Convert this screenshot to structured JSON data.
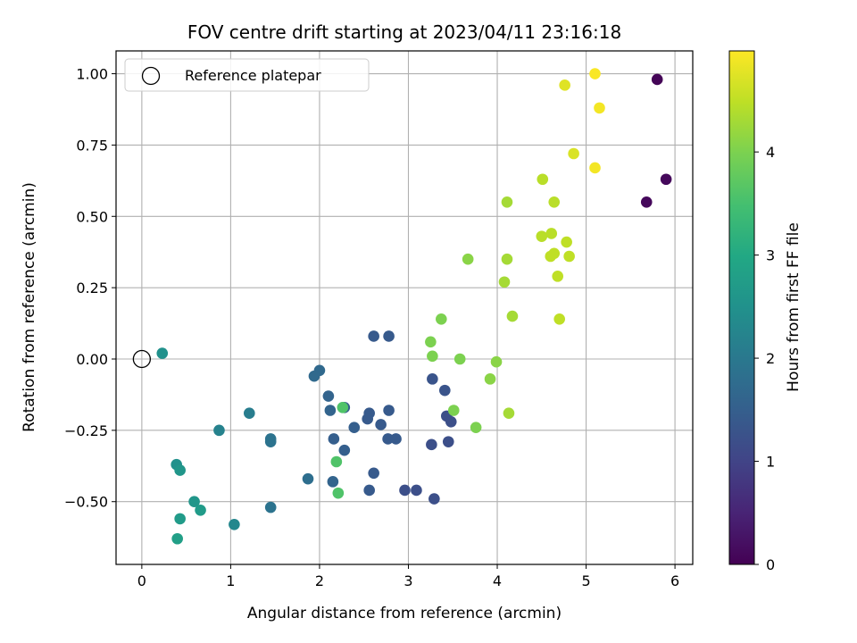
{
  "chart_data": {
    "type": "scatter",
    "title": "FOV centre drift starting at 2023/04/11 23:16:18",
    "xlabel": "Angular distance from reference (arcmin)",
    "ylabel": "Rotation from reference (arcmin)",
    "xlim": [
      -0.29,
      6.2
    ],
    "ylim": [
      -0.72,
      1.08
    ],
    "xticks": [
      0,
      1,
      2,
      3,
      4,
      5,
      6
    ],
    "xtick_labels": [
      "0",
      "1",
      "2",
      "3",
      "4",
      "5",
      "6"
    ],
    "yticks": [
      -0.5,
      -0.25,
      0.0,
      0.25,
      0.5,
      0.75,
      1.0
    ],
    "ytick_labels": [
      "−0.50",
      "−0.25",
      "0.00",
      "0.25",
      "0.50",
      "0.75",
      "1.00"
    ],
    "grid": true,
    "legend": {
      "placement": "top-left",
      "entries": [
        {
          "label": "Reference platepar",
          "marker": "open-circle"
        }
      ]
    },
    "reference_point": {
      "x": 0.0,
      "y": 0.0
    },
    "colorbar": {
      "label": "Hours from first FF file",
      "colormap": "viridis",
      "range": [
        0,
        4.98
      ],
      "ticks": [
        0,
        1,
        2,
        3,
        4
      ],
      "tick_labels": [
        "0",
        "1",
        "2",
        "3",
        "4"
      ]
    },
    "points": [
      {
        "x": 5.8,
        "y": 0.98,
        "c": 0.05
      },
      {
        "x": 5.9,
        "y": 0.63,
        "c": 0.1
      },
      {
        "x": 5.68,
        "y": 0.55,
        "c": 0.1
      },
      {
        "x": 2.61,
        "y": 0.08,
        "c": 1.4
      },
      {
        "x": 2.78,
        "y": 0.08,
        "c": 1.4
      },
      {
        "x": 3.27,
        "y": -0.07,
        "c": 1.3
      },
      {
        "x": 3.41,
        "y": -0.11,
        "c": 1.3
      },
      {
        "x": 3.43,
        "y": -0.2,
        "c": 1.2
      },
      {
        "x": 3.48,
        "y": -0.22,
        "c": 1.2
      },
      {
        "x": 3.45,
        "y": -0.29,
        "c": 1.2
      },
      {
        "x": 3.26,
        "y": -0.3,
        "c": 1.2
      },
      {
        "x": 3.29,
        "y": -0.49,
        "c": 1.2
      },
      {
        "x": 3.09,
        "y": -0.46,
        "c": 1.2
      },
      {
        "x": 2.96,
        "y": -0.46,
        "c": 1.2
      },
      {
        "x": 2.78,
        "y": -0.18,
        "c": 1.4
      },
      {
        "x": 2.69,
        "y": -0.23,
        "c": 1.4
      },
      {
        "x": 2.77,
        "y": -0.28,
        "c": 1.4
      },
      {
        "x": 2.86,
        "y": -0.28,
        "c": 1.4
      },
      {
        "x": 2.56,
        "y": -0.19,
        "c": 1.4
      },
      {
        "x": 2.54,
        "y": -0.21,
        "c": 1.4
      },
      {
        "x": 2.61,
        "y": -0.4,
        "c": 1.4
      },
      {
        "x": 2.56,
        "y": -0.46,
        "c": 1.4
      },
      {
        "x": 2.39,
        "y": -0.24,
        "c": 1.5
      },
      {
        "x": 2.28,
        "y": -0.17,
        "c": 1.5
      },
      {
        "x": 2.28,
        "y": -0.32,
        "c": 1.5
      },
      {
        "x": 2.16,
        "y": -0.28,
        "c": 1.5
      },
      {
        "x": 2.12,
        "y": -0.18,
        "c": 1.6
      },
      {
        "x": 2.1,
        "y": -0.13,
        "c": 1.6
      },
      {
        "x": 2.15,
        "y": -0.43,
        "c": 1.6
      },
      {
        "x": 2.0,
        "y": -0.04,
        "c": 1.7
      },
      {
        "x": 1.94,
        "y": -0.06,
        "c": 1.7
      },
      {
        "x": 1.87,
        "y": -0.42,
        "c": 1.8
      },
      {
        "x": 1.45,
        "y": -0.28,
        "c": 1.9
      },
      {
        "x": 1.45,
        "y": -0.29,
        "c": 1.9
      },
      {
        "x": 1.45,
        "y": -0.52,
        "c": 1.9
      },
      {
        "x": 1.21,
        "y": -0.19,
        "c": 2.1
      },
      {
        "x": 0.87,
        "y": -0.25,
        "c": 2.2
      },
      {
        "x": 1.04,
        "y": -0.58,
        "c": 2.3
      },
      {
        "x": 0.23,
        "y": 0.02,
        "c": 2.5
      },
      {
        "x": 0.39,
        "y": -0.37,
        "c": 2.5
      },
      {
        "x": 0.43,
        "y": -0.39,
        "c": 2.6
      },
      {
        "x": 0.59,
        "y": -0.5,
        "c": 2.6
      },
      {
        "x": 0.66,
        "y": -0.53,
        "c": 2.7
      },
      {
        "x": 0.43,
        "y": -0.56,
        "c": 2.7
      },
      {
        "x": 0.4,
        "y": -0.63,
        "c": 2.8
      },
      {
        "x": 2.26,
        "y": -0.17,
        "c": 3.6
      },
      {
        "x": 2.19,
        "y": -0.36,
        "c": 3.6
      },
      {
        "x": 2.21,
        "y": -0.47,
        "c": 3.6
      },
      {
        "x": 3.25,
        "y": 0.06,
        "c": 4.0
      },
      {
        "x": 3.27,
        "y": 0.01,
        "c": 4.0
      },
      {
        "x": 3.37,
        "y": 0.14,
        "c": 4.0
      },
      {
        "x": 3.58,
        "y": 0.0,
        "c": 4.0
      },
      {
        "x": 3.51,
        "y": -0.18,
        "c": 4.0
      },
      {
        "x": 3.76,
        "y": -0.24,
        "c": 4.0
      },
      {
        "x": 3.67,
        "y": 0.35,
        "c": 4.1
      },
      {
        "x": 3.92,
        "y": -0.07,
        "c": 4.1
      },
      {
        "x": 3.99,
        "y": -0.01,
        "c": 4.1
      },
      {
        "x": 4.13,
        "y": -0.19,
        "c": 4.3
      },
      {
        "x": 4.17,
        "y": 0.15,
        "c": 4.3
      },
      {
        "x": 4.08,
        "y": 0.27,
        "c": 4.3
      },
      {
        "x": 4.11,
        "y": 0.35,
        "c": 4.3
      },
      {
        "x": 4.11,
        "y": 0.55,
        "c": 4.3
      },
      {
        "x": 4.51,
        "y": 0.63,
        "c": 4.45
      },
      {
        "x": 4.64,
        "y": 0.55,
        "c": 4.45
      },
      {
        "x": 4.5,
        "y": 0.43,
        "c": 4.45
      },
      {
        "x": 4.61,
        "y": 0.44,
        "c": 4.45
      },
      {
        "x": 4.6,
        "y": 0.36,
        "c": 4.5
      },
      {
        "x": 4.64,
        "y": 0.37,
        "c": 4.5
      },
      {
        "x": 4.78,
        "y": 0.41,
        "c": 4.5
      },
      {
        "x": 4.81,
        "y": 0.36,
        "c": 4.5
      },
      {
        "x": 4.68,
        "y": 0.29,
        "c": 4.5
      },
      {
        "x": 4.7,
        "y": 0.14,
        "c": 4.5
      },
      {
        "x": 4.86,
        "y": 0.72,
        "c": 4.7
      },
      {
        "x": 4.76,
        "y": 0.96,
        "c": 4.75
      },
      {
        "x": 5.1,
        "y": 0.67,
        "c": 4.9
      },
      {
        "x": 5.15,
        "y": 0.88,
        "c": 4.9
      },
      {
        "x": 5.1,
        "y": 1.0,
        "c": 4.95
      }
    ]
  }
}
